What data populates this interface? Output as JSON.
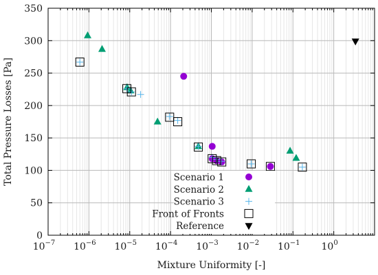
{
  "chart_data": {
    "type": "scatter",
    "xlabel": "Mixture Uniformity [-]",
    "ylabel": "Total Pressure Losses [Pa]",
    "xscale": "log",
    "xlim": [
      1e-07,
      10
    ],
    "ylim": [
      0,
      350
    ],
    "grid": true,
    "legend_position": "lower-center",
    "x_ticks": [
      {
        "value": 1e-07,
        "label": "10",
        "exp": "−7"
      },
      {
        "value": 1e-06,
        "label": "10",
        "exp": "−6"
      },
      {
        "value": 1e-05,
        "label": "10",
        "exp": "−5"
      },
      {
        "value": 0.0001,
        "label": "10",
        "exp": "−4"
      },
      {
        "value": 0.001,
        "label": "10",
        "exp": "−3"
      },
      {
        "value": 0.01,
        "label": "10",
        "exp": "−2"
      },
      {
        "value": 0.1,
        "label": "10",
        "exp": "−1"
      },
      {
        "value": 1,
        "label": "10",
        "exp": "0"
      }
    ],
    "y_ticks": [
      0,
      50,
      100,
      150,
      200,
      250,
      300,
      350
    ],
    "series": [
      {
        "name": "Scenario 1",
        "marker": "circle",
        "color": "#9400d3",
        "points": [
          [
            0.00021,
            245
          ],
          [
            0.00105,
            137
          ],
          [
            0.00105,
            118
          ],
          [
            0.00135,
            115
          ],
          [
            0.0018,
            113
          ],
          [
            0.028,
            106
          ]
        ]
      },
      {
        "name": "Scenario 2",
        "marker": "triangle-up",
        "color": "#009e73",
        "points": [
          [
            9.3e-07,
            308
          ],
          [
            2.1e-06,
            287
          ],
          [
            8.6e-06,
            228
          ],
          [
            1.05e-05,
            223
          ],
          [
            4.8e-05,
            175
          ],
          [
            0.00048,
            137
          ],
          [
            0.085,
            130
          ],
          [
            0.12,
            119
          ]
        ]
      },
      {
        "name": "Scenario 3",
        "marker": "plus",
        "color": "#56b4e9",
        "points": [
          [
            6e-07,
            267
          ],
          [
            8.5e-06,
            226
          ],
          [
            1.1e-05,
            221
          ],
          [
            1.85e-05,
            217
          ],
          [
            9.5e-05,
            183
          ],
          [
            0.00015,
            177
          ],
          [
            0.00048,
            137
          ],
          [
            0.00105,
            120
          ],
          [
            0.00135,
            117
          ],
          [
            0.00175,
            114
          ],
          [
            0.0095,
            110
          ],
          [
            0.17,
            105
          ]
        ]
      },
      {
        "name": "Front of Fronts",
        "marker": "square",
        "color": "#000000",
        "points": [
          [
            6e-07,
            267
          ],
          [
            8.5e-06,
            226
          ],
          [
            1.1e-05,
            221
          ],
          [
            9.5e-05,
            182
          ],
          [
            0.00015,
            175
          ],
          [
            0.00048,
            136
          ],
          [
            0.00105,
            118
          ],
          [
            0.00135,
            115
          ],
          [
            0.0018,
            113
          ],
          [
            0.0095,
            110
          ],
          [
            0.028,
            106
          ],
          [
            0.17,
            105
          ]
        ]
      },
      {
        "name": "Reference",
        "marker": "triangle-down",
        "color": "#000000",
        "points": [
          [
            3.4,
            299
          ]
        ]
      }
    ]
  }
}
